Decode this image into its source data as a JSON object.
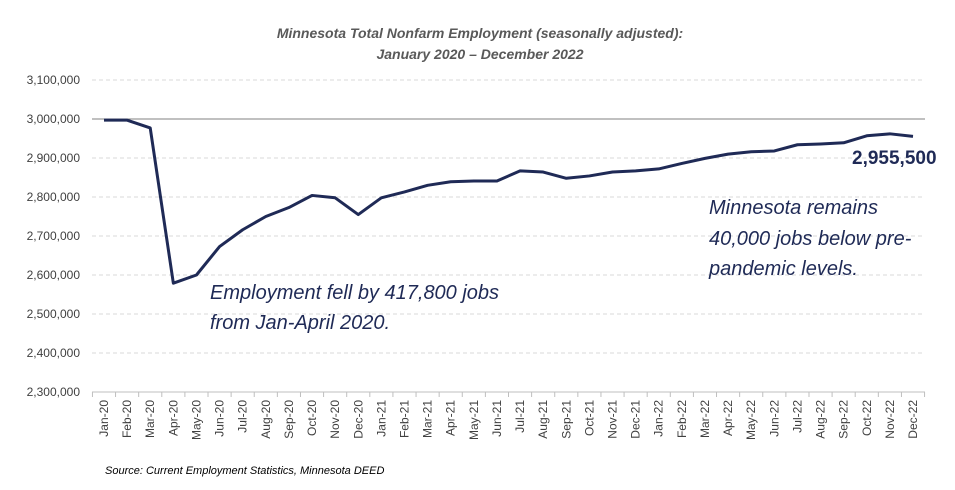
{
  "chart_data": {
    "type": "line",
    "title": [
      "Minnesota Total Nonfarm Employment (seasonally adjusted):",
      "January 2020 – December 2022"
    ],
    "xlabel": "",
    "ylabel": "",
    "ylim": [
      2300000,
      3100000
    ],
    "yticks": [
      2300000,
      2400000,
      2500000,
      2600000,
      2700000,
      2800000,
      2900000,
      3000000,
      3100000
    ],
    "ytick_labels": [
      "2,300,000",
      "2,400,000",
      "2,500,000",
      "2,600,000",
      "2,700,000",
      "2,800,000",
      "2,900,000",
      "3,000,000",
      "3,100,000"
    ],
    "grid": "horizontal dashed",
    "reference_line": 3000000,
    "categories": [
      "Jan-20",
      "Feb-20",
      "Mar-20",
      "Apr-20",
      "May-20",
      "Jun-20",
      "Jul-20",
      "Aug-20",
      "Sep-20",
      "Oct-20",
      "Nov-20",
      "Dec-20",
      "Jan-21",
      "Feb-21",
      "Mar-21",
      "Apr-21",
      "May-21",
      "Jun-21",
      "Jul-21",
      "Aug-21",
      "Sep-21",
      "Oct-21",
      "Nov-21",
      "Dec-21",
      "Jan-22",
      "Feb-22",
      "Mar-22",
      "Apr-22",
      "May-22",
      "Jun-22",
      "Jul-22",
      "Aug-22",
      "Sep-22",
      "Oct-22",
      "Nov-22",
      "Dec-22"
    ],
    "series": [
      {
        "name": "Total Nonfarm Employment",
        "color": "#1f2a56",
        "values": [
          2997000,
          2997000,
          2977000,
          2579000,
          2600000,
          2673000,
          2716000,
          2750000,
          2773000,
          2804000,
          2798000,
          2755000,
          2798000,
          2813000,
          2830000,
          2839000,
          2841000,
          2841000,
          2867000,
          2864000,
          2848000,
          2854000,
          2864000,
          2867000,
          2872000,
          2886000,
          2899000,
          2910000,
          2916000,
          2918000,
          2934000,
          2936000,
          2939000,
          2957000,
          2962000,
          2955500
        ]
      }
    ],
    "end_label": "2,955,500",
    "annotations": [
      [
        "Employment fell by 417,800 jobs",
        "from Jan-April 2020."
      ],
      [
        "Minnesota remains",
        "40,000 jobs below pre-",
        "pandemic levels."
      ]
    ],
    "source": "Source: Current Employment Statistics, Minnesota DEED"
  }
}
